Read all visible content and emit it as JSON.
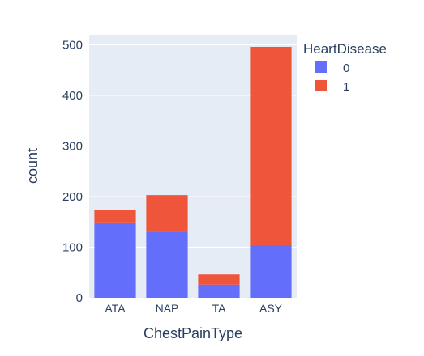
{
  "chart_data": {
    "type": "bar",
    "barmode": "stack",
    "categories": [
      "ATA",
      "NAP",
      "TA",
      "ASY"
    ],
    "series": [
      {
        "name": "0",
        "values": [
          149,
          131,
          26,
          104
        ],
        "color": "#636efa"
      },
      {
        "name": "1",
        "values": [
          24,
          72,
          20,
          392
        ],
        "color": "#ef553b"
      }
    ],
    "xlabel": "ChestPainType",
    "ylabel": "count",
    "ylim": [
      0,
      520
    ],
    "yticks": [
      0,
      100,
      200,
      300,
      400,
      500
    ],
    "legend": {
      "title": "HeartDisease",
      "placement": "top-right"
    },
    "grid": true,
    "plot_bg": "#e5ecf6",
    "grid_color": "#ffffff"
  }
}
